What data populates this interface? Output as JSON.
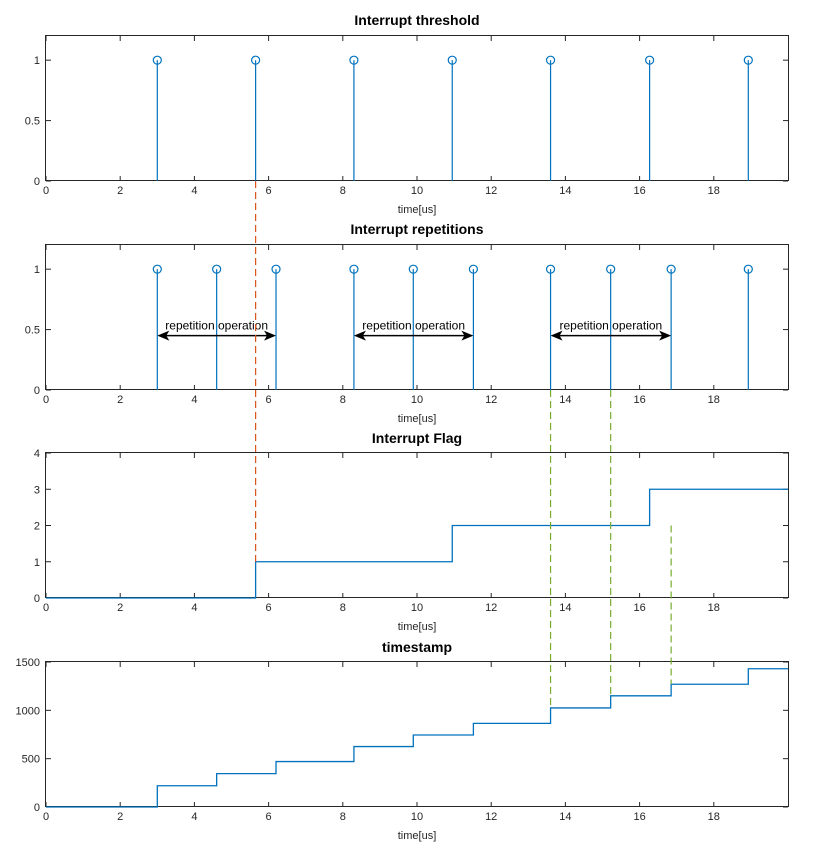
{
  "chart_data": [
    {
      "type": "stem",
      "title": "Interrupt threshold",
      "xlabel": "time[us]",
      "xlim": [
        0,
        20
      ],
      "ylim": [
        0,
        1.2
      ],
      "xticks": [
        "0",
        "2",
        "4",
        "6",
        "8",
        "10",
        "12",
        "14",
        "16",
        "18"
      ],
      "yticks": [
        "0",
        "0.5",
        "1"
      ],
      "x": [
        3.0,
        5.65,
        8.3,
        10.95,
        13.6,
        16.27,
        18.93
      ],
      "y": [
        1,
        1,
        1,
        1,
        1,
        1,
        1
      ],
      "color": "#0072BD"
    },
    {
      "type": "stem",
      "title": "Interrupt repetitions",
      "xlabel": "time[us]",
      "xlim": [
        0,
        20
      ],
      "ylim": [
        0,
        1.2
      ],
      "xticks": [
        "0",
        "2",
        "4",
        "6",
        "8",
        "10",
        "12",
        "14",
        "16",
        "18"
      ],
      "yticks": [
        "0",
        "0.5",
        "1"
      ],
      "x": [
        3.0,
        4.6,
        6.2,
        8.3,
        9.9,
        11.52,
        13.6,
        15.22,
        16.85,
        18.93
      ],
      "y": [
        1,
        1,
        1,
        1,
        1,
        1,
        1,
        1,
        1,
        1
      ],
      "color": "#0072BD",
      "annotations": [
        {
          "text": "repetition operation",
          "x_start": 3.0,
          "x_end": 6.2,
          "y": 0.45
        },
        {
          "text": "repetition operation",
          "x_start": 8.3,
          "x_end": 11.52,
          "y": 0.45
        },
        {
          "text": "repetition operation",
          "x_start": 13.6,
          "x_end": 16.85,
          "y": 0.45
        }
      ]
    },
    {
      "type": "line",
      "title": "Interrupt Flag",
      "xlabel": "time[us]",
      "xlim": [
        0,
        20
      ],
      "ylim": [
        0,
        4
      ],
      "xticks": [
        "0",
        "2",
        "4",
        "6",
        "8",
        "10",
        "12",
        "14",
        "16",
        "18"
      ],
      "yticks": [
        "0",
        "1",
        "2",
        "3",
        "4"
      ],
      "x": [
        0,
        5.65,
        5.65,
        10.95,
        10.95,
        16.27,
        16.27,
        20
      ],
      "y": [
        0,
        0,
        1,
        1,
        2,
        2,
        3,
        3
      ],
      "color": "#0072BD"
    },
    {
      "type": "line",
      "title": "timestamp",
      "xlabel": "time[us]",
      "xlim": [
        0,
        20
      ],
      "ylim": [
        0,
        1500
      ],
      "xticks": [
        "0",
        "2",
        "4",
        "6",
        "8",
        "10",
        "12",
        "14",
        "16",
        "18"
      ],
      "yticks": [
        "0",
        "500",
        "1000",
        "1500"
      ],
      "x": [
        0,
        3.0,
        3.0,
        4.6,
        4.6,
        6.2,
        6.2,
        8.3,
        8.3,
        9.9,
        9.9,
        11.52,
        11.52,
        13.6,
        13.6,
        15.22,
        15.22,
        16.85,
        16.85,
        18.93,
        18.93,
        20
      ],
      "y": [
        0,
        0,
        220,
        220,
        345,
        345,
        470,
        470,
        625,
        625,
        745,
        745,
        865,
        865,
        1025,
        1025,
        1150,
        1150,
        1270,
        1270,
        1430,
        1430
      ],
      "color": "#0072BD"
    }
  ],
  "guides": [
    {
      "color": "#D95319",
      "x": 5.65,
      "from_chart": 0,
      "from_y": 0,
      "to_chart": 2,
      "to_y": 1
    },
    {
      "color": "#77AC30",
      "x": 13.6,
      "from_chart": 1,
      "from_y": 0,
      "to_chart": 3,
      "to_y": 1025
    },
    {
      "color": "#77AC30",
      "x": 15.22,
      "from_chart": 1,
      "from_y": 0,
      "to_chart": 3,
      "to_y": 1150
    },
    {
      "color": "#77AC30",
      "x": 16.85,
      "from_chart": 2,
      "from_y": 2,
      "to_chart": 3,
      "to_y": 1270
    }
  ]
}
